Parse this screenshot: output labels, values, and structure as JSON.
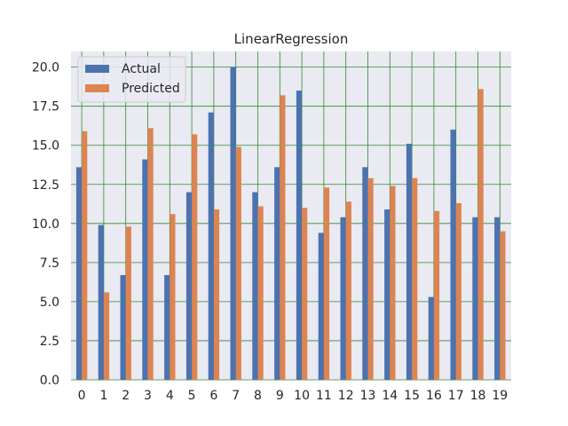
{
  "chart_data": {
    "type": "bar",
    "title": "LinearRegression",
    "xlabel": "",
    "ylabel": "",
    "categories": [
      "0",
      "1",
      "2",
      "3",
      "4",
      "5",
      "6",
      "7",
      "8",
      "9",
      "10",
      "11",
      "12",
      "13",
      "14",
      "15",
      "16",
      "17",
      "18",
      "19"
    ],
    "series": [
      {
        "name": "Actual",
        "color": "#4c72b0",
        "values": [
          13.6,
          9.9,
          6.7,
          14.1,
          6.7,
          12.0,
          17.1,
          20.0,
          12.0,
          13.6,
          18.5,
          9.4,
          10.4,
          13.6,
          10.9,
          15.1,
          5.3,
          16.0,
          10.4,
          10.4
        ]
      },
      {
        "name": "Predicted",
        "color": "#dd8452",
        "values": [
          15.9,
          5.6,
          9.8,
          16.1,
          10.6,
          15.7,
          10.9,
          14.9,
          11.1,
          18.2,
          11.0,
          12.3,
          11.4,
          12.9,
          12.4,
          12.9,
          10.8,
          11.3,
          18.6,
          9.5
        ]
      }
    ],
    "ylim": [
      0,
      21.0
    ],
    "yticks": [
      "0.0",
      "2.5",
      "5.0",
      "7.5",
      "10.0",
      "12.5",
      "15.0",
      "17.5",
      "20.0"
    ],
    "grid": true,
    "grid_color": "#2e8b2e",
    "background": "#eaeaf2",
    "legend_position": "upper-left"
  }
}
